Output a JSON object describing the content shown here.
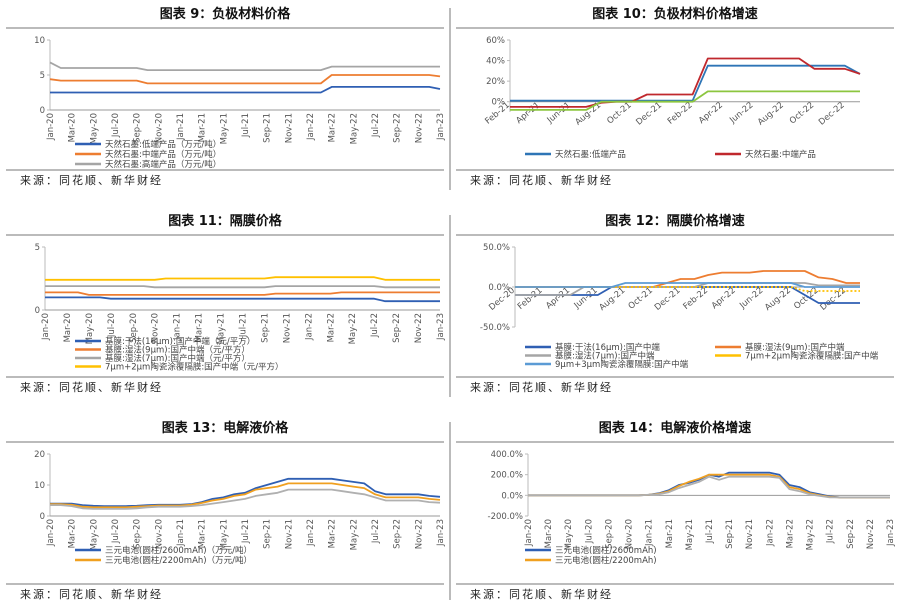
{
  "chart_data": [
    {
      "type": "line",
      "title": "图表 9：负极材料价格",
      "source": "来源：同花顺、新华财经",
      "categories": [
        "Jan-20",
        null,
        "Mar-20",
        null,
        "May-20",
        null,
        "Jul-20",
        null,
        "Sep-20",
        null,
        "Nov-20",
        null,
        "Jan-21",
        null,
        "Mar-21",
        null,
        "May-21",
        null,
        "Jul-21",
        null,
        "Sep-21",
        null,
        "Nov-21",
        null,
        "Jan-22",
        null,
        "Mar-22",
        null,
        "May-22",
        null,
        "Jul-22",
        null,
        "Sep-22",
        null,
        "Nov-22",
        null,
        "Jan-23"
      ],
      "ylim": [
        0,
        10
      ],
      "yticks": [
        0,
        5,
        10
      ],
      "series": [
        {
          "name": "天然石墨:低端产品（万元/吨）",
          "color": "#2f5fb3",
          "values": [
            2.5,
            2.5,
            2.5,
            2.5,
            2.5,
            2.5,
            2.5,
            2.5,
            2.5,
            2.5,
            2.5,
            2.5,
            2.5,
            2.5,
            2.5,
            2.5,
            2.5,
            2.5,
            2.5,
            2.5,
            2.5,
            2.5,
            2.5,
            2.5,
            2.5,
            2.5,
            3.3,
            3.3,
            3.3,
            3.3,
            3.3,
            3.3,
            3.3,
            3.3,
            3.3,
            3.3,
            3.0
          ]
        },
        {
          "name": "天然石墨:中端产品（万元/吨）",
          "color": "#ed7d31",
          "values": [
            4.4,
            4.2,
            4.2,
            4.2,
            4.2,
            4.2,
            4.2,
            4.2,
            4.2,
            3.8,
            3.8,
            3.8,
            3.8,
            3.8,
            3.8,
            3.8,
            3.8,
            3.8,
            3.8,
            3.8,
            3.8,
            3.8,
            3.8,
            3.8,
            3.8,
            3.8,
            5.0,
            5.0,
            5.0,
            5.0,
            5.0,
            5.0,
            5.0,
            5.0,
            5.0,
            5.0,
            4.8
          ]
        },
        {
          "name": "天然石墨:高端产品（万元/吨）",
          "color": "#a5a5a5",
          "values": [
            6.8,
            6.0,
            6.0,
            6.0,
            6.0,
            6.0,
            6.0,
            6.0,
            6.0,
            5.7,
            5.7,
            5.7,
            5.7,
            5.7,
            5.7,
            5.7,
            5.7,
            5.7,
            5.7,
            5.7,
            5.7,
            5.7,
            5.7,
            5.7,
            5.7,
            5.7,
            6.2,
            6.2,
            6.2,
            6.2,
            6.2,
            6.2,
            6.2,
            6.2,
            6.2,
            6.2,
            6.2
          ]
        }
      ]
    },
    {
      "type": "line",
      "title": "图表 10：负极材料价格增速",
      "source": "来源：同花顺、新华财经",
      "categories": [
        "Feb-21",
        null,
        "Apr-21",
        null,
        "Jun-21",
        null,
        "Aug-21",
        null,
        "Oct-21",
        null,
        "Dec-21",
        null,
        "Feb-22",
        null,
        "Apr-22",
        null,
        "Jun-22",
        null,
        "Aug-22",
        null,
        "Oct-22",
        null,
        "Dec-22",
        null
      ],
      "ylim": [
        -10,
        60
      ],
      "yticks": [
        {
          "value": 0,
          "label": "0%"
        },
        {
          "value": 20,
          "label": "20%"
        },
        {
          "value": 40,
          "label": "40%"
        },
        {
          "value": 60,
          "label": "60%"
        }
      ],
      "series": [
        {
          "name": "天然石墨:低端产品",
          "color": "#2e75b6",
          "values": [
            1,
            1,
            1,
            1,
            1,
            1,
            1,
            1,
            1,
            1,
            1,
            1,
            1,
            35,
            35,
            35,
            35,
            35,
            35,
            35,
            35,
            35,
            35,
            27
          ]
        },
        {
          "name": "天然石墨:中端产品",
          "color": "#c0282d",
          "values": [
            -5,
            -5,
            -5,
            -5,
            -5,
            -5,
            -1,
            0,
            0,
            7,
            7,
            7,
            7,
            42,
            42,
            42,
            42,
            42,
            42,
            42,
            32,
            32,
            32,
            27
          ]
        },
        {
          "color": "#8cc63f",
          "values": [
            -8,
            -8,
            -8,
            -8,
            -8,
            -8,
            0,
            0,
            0,
            0,
            0,
            0,
            0,
            10,
            10,
            10,
            10,
            10,
            10,
            10,
            10,
            10,
            10,
            10
          ]
        }
      ]
    },
    {
      "type": "line",
      "title": "图表 11：隔膜价格",
      "source": "来源：同花顺、新华财经",
      "categories": [
        "Jan-20",
        null,
        "Mar-20",
        null,
        "May-20",
        null,
        "Jul-20",
        null,
        "Sep-20",
        null,
        "Nov-20",
        null,
        "Jan-21",
        null,
        "Mar-21",
        null,
        "May-21",
        null,
        "Jul-21",
        null,
        "Sep-21",
        null,
        "Nov-21",
        null,
        "Jan-22",
        null,
        "Mar-22",
        null,
        "May-22",
        null,
        "Jul-22",
        null,
        "Sep-22",
        null,
        "Nov-22",
        null,
        "Jan-23"
      ],
      "ylim": [
        0,
        5
      ],
      "yticks": [
        0,
        5
      ],
      "series": [
        {
          "name": "基膜:干法(16μm):国产中端（元/平方）",
          "color": "#2f5fb3",
          "values": [
            1.0,
            1.0,
            1.0,
            1.0,
            1.0,
            1.0,
            0.9,
            0.9,
            0.9,
            0.9,
            0.9,
            0.9,
            0.9,
            0.9,
            0.9,
            0.9,
            0.9,
            0.9,
            0.9,
            0.9,
            0.9,
            0.9,
            0.9,
            0.9,
            0.9,
            0.9,
            0.9,
            0.9,
            0.9,
            0.9,
            0.9,
            0.7,
            0.7,
            0.7,
            0.7,
            0.7,
            0.7
          ]
        },
        {
          "name": "基膜:湿法(9μm):国产中端（元/平方）",
          "color": "#ed7d31",
          "values": [
            1.4,
            1.4,
            1.4,
            1.4,
            1.2,
            1.2,
            1.2,
            1.2,
            1.2,
            1.2,
            1.2,
            1.2,
            1.2,
            1.2,
            1.2,
            1.2,
            1.2,
            1.2,
            1.2,
            1.2,
            1.2,
            1.3,
            1.3,
            1.3,
            1.3,
            1.3,
            1.3,
            1.4,
            1.4,
            1.4,
            1.4,
            1.4,
            1.4,
            1.4,
            1.4,
            1.4,
            1.4
          ]
        },
        {
          "name": "基膜:湿法(7μm):国产中端（元/平方）",
          "color": "#a5a5a5",
          "values": [
            1.9,
            1.9,
            1.9,
            1.9,
            1.9,
            1.9,
            1.9,
            1.9,
            1.9,
            1.9,
            1.8,
            1.8,
            1.8,
            1.8,
            1.8,
            1.8,
            1.8,
            1.8,
            1.8,
            1.8,
            1.8,
            1.9,
            1.9,
            1.9,
            1.9,
            1.9,
            1.9,
            1.9,
            1.9,
            1.9,
            1.9,
            1.8,
            1.8,
            1.8,
            1.8,
            1.8,
            1.8
          ]
        },
        {
          "name": "7μm+2μm陶瓷涂覆隔膜:国产中端（元/平方）",
          "color": "#ffc000",
          "values": [
            2.4,
            2.4,
            2.4,
            2.4,
            2.4,
            2.4,
            2.4,
            2.4,
            2.4,
            2.4,
            2.4,
            2.5,
            2.5,
            2.5,
            2.5,
            2.5,
            2.5,
            2.5,
            2.5,
            2.5,
            2.5,
            2.6,
            2.6,
            2.6,
            2.6,
            2.6,
            2.6,
            2.6,
            2.6,
            2.6,
            2.6,
            2.4,
            2.4,
            2.4,
            2.4,
            2.4,
            2.4
          ]
        }
      ]
    },
    {
      "type": "line",
      "title": "图表 12：隔膜价格增速",
      "source": "来源：同花顺、新华财经",
      "categories": [
        "Dec-20",
        null,
        "Feb-21",
        null,
        "Apr-21",
        null,
        "Jun-21",
        null,
        "Aug-21",
        null,
        "Oct-21",
        null,
        "Dec-21",
        null,
        "Feb-22",
        null,
        "Apr-22",
        null,
        "Jun-22",
        null,
        "Aug-22",
        null,
        "Oct-22",
        null,
        "Dec-22",
        null
      ],
      "ylim": [
        -50,
        50
      ],
      "yticks": [
        {
          "value": -50,
          "label": "-50.0%"
        },
        {
          "value": 0,
          "label": "0.0%"
        },
        {
          "value": 50,
          "label": "50.0%"
        }
      ],
      "series": [
        {
          "name": "基膜:干法(16μm):国产中端",
          "color": "#2f5fb3",
          "values": [
            -10,
            -10,
            -10,
            -10,
            -10,
            -10,
            -10,
            0,
            0,
            0,
            0,
            0,
            0,
            0,
            0,
            0,
            0,
            0,
            0,
            0,
            0,
            -10,
            -20,
            -20,
            -20,
            -20
          ]
        },
        {
          "name": "基膜:湿法(9μm):国产中端",
          "color": "#ed7d31",
          "values": [
            0,
            0,
            0,
            0,
            0,
            0,
            0,
            0,
            0,
            0,
            0,
            5,
            10,
            10,
            15,
            18,
            18,
            18,
            20,
            20,
            20,
            20,
            12,
            10,
            5,
            5
          ]
        },
        {
          "name": "基膜:湿法(7μm):国产中端",
          "color": "#a5a5a5",
          "values": [
            -10,
            -10,
            -10,
            -10,
            -10,
            0,
            0,
            0,
            0,
            0,
            0,
            0,
            0,
            0,
            5,
            5,
            5,
            5,
            5,
            5,
            5,
            5,
            2,
            2,
            2,
            2
          ]
        },
        {
          "name": "7μm+2μm陶瓷涂覆隔膜:国产中端",
          "color": "#ffc000",
          "dashed": true,
          "values": [
            0,
            0,
            0,
            0,
            0,
            0,
            0,
            0,
            0,
            0,
            0,
            0,
            0,
            0,
            0,
            0,
            0,
            0,
            0,
            0,
            0,
            -5,
            -5,
            -5,
            -5,
            -5
          ]
        },
        {
          "name": "9μm+3μm陶瓷涂覆隔膜:国产中端",
          "color": "#5b9bd5",
          "values": [
            0,
            0,
            0,
            0,
            0,
            0,
            0,
            0,
            5,
            5,
            5,
            5,
            5,
            5,
            5,
            5,
            5,
            5,
            5,
            5,
            5,
            0,
            0,
            0,
            0,
            0
          ]
        }
      ]
    },
    {
      "type": "line",
      "title": "图表 13：电解液价格",
      "source": "来源：同花顺、新华财经",
      "categories": [
        "Jan-20",
        null,
        "Mar-20",
        null,
        "May-20",
        null,
        "Jul-20",
        null,
        "Sep-20",
        null,
        "Nov-20",
        null,
        "Jan-21",
        null,
        "Mar-21",
        null,
        "May-21",
        null,
        "Jul-21",
        null,
        "Sep-21",
        null,
        "Nov-21",
        null,
        "Jan-22",
        null,
        "Mar-22",
        null,
        "May-22",
        null,
        "Jul-22",
        null,
        "Sep-22",
        null,
        "Nov-22",
        null,
        "Jan-23"
      ],
      "ylim": [
        0,
        20
      ],
      "yticks": [
        0,
        10,
        20
      ],
      "series": [
        {
          "name": "三元电池(圆柱/2600mAh)（万元/吨）",
          "color": "#2f5fb3",
          "values": [
            4,
            4,
            4,
            3.5,
            3.3,
            3.2,
            3.2,
            3.2,
            3.3,
            3.5,
            3.6,
            3.6,
            3.6,
            3.8,
            4.5,
            5.5,
            6,
            7,
            7.5,
            9,
            10,
            11,
            12,
            12,
            12,
            12,
            12,
            11.5,
            11,
            10.5,
            8,
            7,
            7,
            7,
            7,
            6.5,
            6.2
          ]
        },
        {
          "name": "三元电池(圆柱/2200mAh)（万元/吨）",
          "color": "#f0a020",
          "values": [
            3.8,
            3.8,
            3.6,
            3,
            2.8,
            2.8,
            2.8,
            2.8,
            3,
            3.2,
            3.4,
            3.4,
            3.4,
            3.6,
            4.2,
            5,
            5.5,
            6.5,
            7,
            8.5,
            9,
            9.5,
            10.5,
            10.5,
            10.5,
            10.5,
            10.5,
            10,
            9.5,
            9,
            7,
            6,
            6,
            6,
            6,
            5.5,
            5.2
          ]
        },
        {
          "color": "#b0b0b0",
          "values": [
            3.5,
            3.5,
            3.2,
            2.5,
            2.3,
            2.3,
            2.3,
            2.3,
            2.5,
            2.8,
            3,
            3,
            3,
            3.2,
            3.5,
            4,
            4.5,
            5,
            5.5,
            6.5,
            7,
            7.5,
            8.5,
            8.5,
            8.5,
            8.5,
            8.5,
            8,
            7.5,
            7,
            6,
            5,
            5,
            5,
            5,
            4.5,
            4.3
          ]
        }
      ]
    },
    {
      "type": "line",
      "title": "图表 14：电解液价格增速",
      "source": "来源：同花顺、新华财经",
      "categories": [
        "Jan-20",
        null,
        "Mar-20",
        null,
        "May-20",
        null,
        "Jul-20",
        null,
        "Sep-20",
        null,
        "Nov-20",
        null,
        "Jan-21",
        null,
        "Mar-21",
        null,
        "May-21",
        null,
        "Jul-21",
        null,
        "Sep-21",
        null,
        "Nov-21",
        null,
        "Jan-22",
        null,
        "Mar-22",
        null,
        "May-22",
        null,
        "Jul-22",
        null,
        "Sep-22",
        null,
        "Nov-22",
        null,
        "Jan-23"
      ],
      "ylim": [
        -200,
        400
      ],
      "yticks": [
        {
          "value": -200,
          "label": "-200.0%"
        },
        {
          "value": 0,
          "label": "0.0%"
        },
        {
          "value": 200,
          "label": "200.0%"
        },
        {
          "value": 400,
          "label": "400.0%"
        }
      ],
      "series": [
        {
          "name": "三元电池(圆柱/2600mAh)",
          "color": "#2f5fb3",
          "values": [
            0,
            0,
            0,
            0,
            0,
            0,
            0,
            0,
            0,
            0,
            0,
            0,
            5,
            20,
            50,
            100,
            120,
            150,
            200,
            180,
            220,
            220,
            220,
            220,
            220,
            200,
            100,
            80,
            30,
            10,
            -10,
            -20,
            -20,
            -20,
            -20,
            -20,
            -20
          ]
        },
        {
          "name": "三元电池(圆柱/2200mAh)",
          "color": "#f0a020",
          "values": [
            0,
            0,
            0,
            0,
            0,
            0,
            0,
            0,
            0,
            0,
            0,
            0,
            5,
            15,
            40,
            90,
            130,
            160,
            200,
            200,
            200,
            200,
            200,
            200,
            200,
            180,
            80,
            60,
            20,
            0,
            -15,
            -20,
            -20,
            -20,
            -20,
            -20,
            -20
          ]
        },
        {
          "color": "#b0b0b0",
          "values": [
            0,
            0,
            0,
            0,
            0,
            0,
            0,
            0,
            0,
            0,
            0,
            0,
            5,
            10,
            30,
            70,
            100,
            130,
            180,
            150,
            180,
            180,
            180,
            180,
            180,
            170,
            60,
            40,
            10,
            -5,
            -20,
            -20,
            -20,
            -20,
            -20,
            -20,
            -20
          ]
        }
      ]
    }
  ]
}
